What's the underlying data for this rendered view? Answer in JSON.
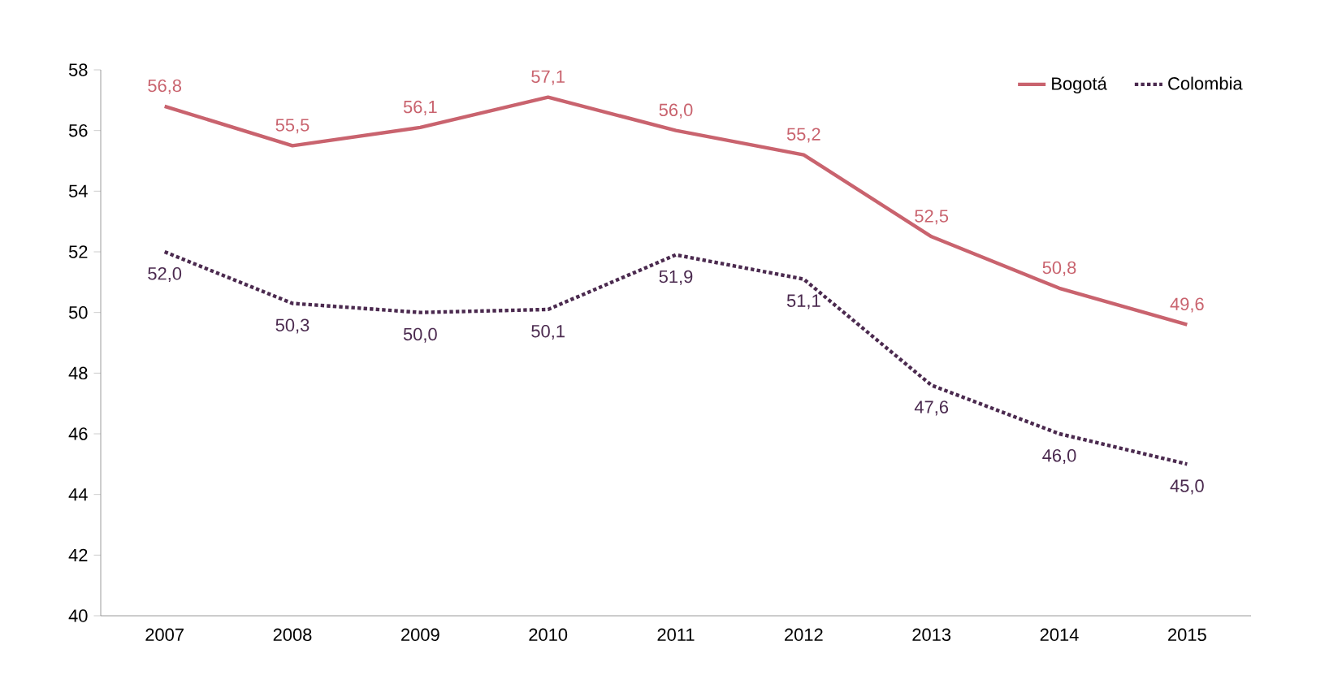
{
  "chart_data": {
    "type": "line",
    "categories": [
      "2007",
      "2008",
      "2009",
      "2010",
      "2011",
      "2012",
      "2013",
      "2014",
      "2015"
    ],
    "series": [
      {
        "name": "Bogotá",
        "color": "#c9636e",
        "line_style": "solid",
        "values": [
          56.8,
          55.5,
          56.1,
          57.1,
          56.0,
          55.2,
          52.5,
          50.8,
          49.6
        ],
        "value_labels": [
          "56,8",
          "55,5",
          "56,1",
          "57,1",
          "56,0",
          "55,2",
          "52,5",
          "50,8",
          "49,6"
        ]
      },
      {
        "name": "Colombia",
        "color": "#4b2a4f",
        "line_style": "dotted",
        "values": [
          52.0,
          50.3,
          50.0,
          50.1,
          51.9,
          51.1,
          47.6,
          46.0,
          45.0
        ],
        "value_labels": [
          "52,0",
          "50,3",
          "50,0",
          "50,1",
          "51,9",
          "51,1",
          "47,6",
          "46,0",
          "45,0"
        ]
      }
    ],
    "ylim": [
      40,
      58
    ],
    "yticks": [
      40,
      42,
      44,
      46,
      48,
      50,
      52,
      54,
      56,
      58
    ],
    "grid": false,
    "legend": "top right",
    "marker": "none"
  }
}
